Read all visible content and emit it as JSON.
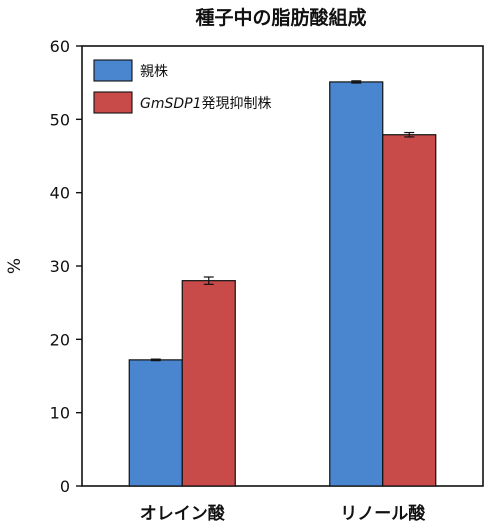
{
  "chart_data": {
    "type": "bar",
    "title": "種子中の脂肪酸組成",
    "xlabel": "",
    "ylabel": "%",
    "ylim": [
      0,
      60
    ],
    "yticks": [
      0,
      10,
      20,
      30,
      40,
      50,
      60
    ],
    "categories": [
      "オレイン酸",
      "リノール酸"
    ],
    "series": [
      {
        "name": "親株",
        "name_parts": [
          "親株"
        ],
        "color": "#4a86d0",
        "values": [
          17.2,
          55.1
        ],
        "errors": [
          0.1,
          0.15
        ]
      },
      {
        "name": "GmSDP1発現抑制株",
        "name_parts": [
          "GmSDP1",
          "発現抑制株"
        ],
        "color": "#c84a49",
        "values": [
          28.0,
          47.9
        ],
        "errors": [
          0.5,
          0.3
        ]
      }
    ],
    "legend_position": "top-left",
    "grid": false
  }
}
